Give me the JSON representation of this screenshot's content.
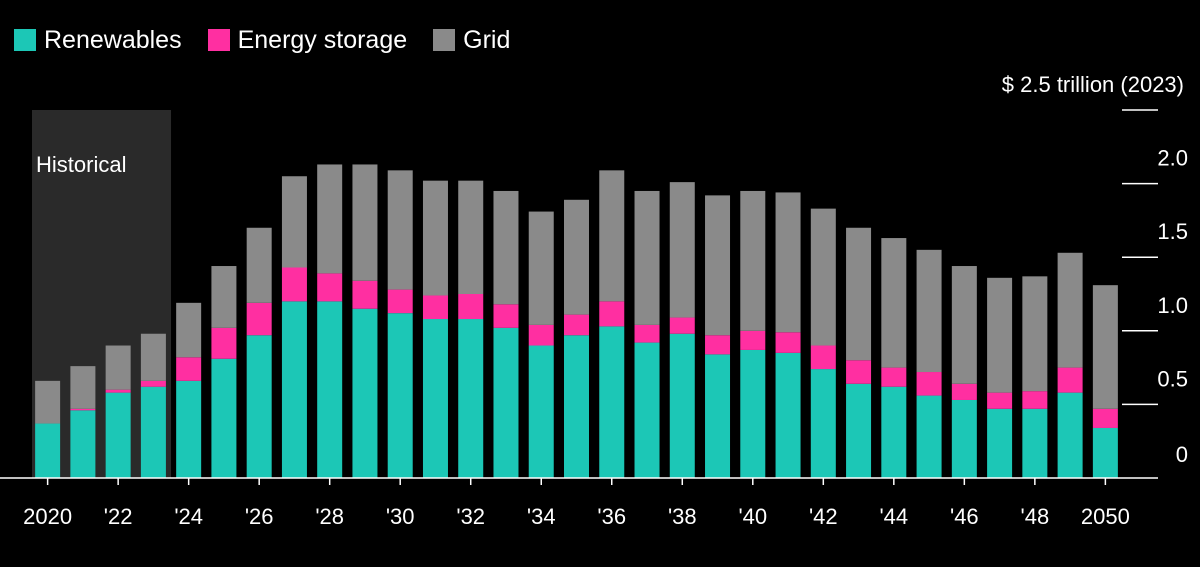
{
  "chart_data": {
    "type": "bar",
    "stacked": true,
    "unit_label": "$ 2.5 trillion (2023)",
    "ylim": [
      0,
      2.5
    ],
    "yticks": [
      "0",
      "0.5",
      "1.0",
      "1.5",
      "2.0"
    ],
    "ytick_values": [
      0,
      0.5,
      1.0,
      1.5,
      2.0
    ],
    "legend_position": "top-left",
    "x": [
      2020,
      2021,
      2022,
      2023,
      2024,
      2025,
      2026,
      2027,
      2028,
      2029,
      2030,
      2031,
      2032,
      2033,
      2034,
      2035,
      2036,
      2037,
      2038,
      2039,
      2040,
      2041,
      2042,
      2043,
      2044,
      2045,
      2046,
      2047,
      2048,
      2049,
      2050
    ],
    "xtick_labels": [
      "2020",
      "",
      "'22",
      "",
      "'24",
      "",
      "'26",
      "",
      "'28",
      "",
      "'30",
      "",
      "'32",
      "",
      "'34",
      "",
      "'36",
      "",
      "'38",
      "",
      "'40",
      "",
      "'42",
      "",
      "'44",
      "",
      "'46",
      "",
      "'48",
      "",
      "2050"
    ],
    "annotation": {
      "text": "Historical",
      "x_start": 2020,
      "x_end": 2023
    },
    "series": [
      {
        "name": "Renewables",
        "color": "#1cc7b6",
        "values": [
          0.37,
          0.46,
          0.58,
          0.62,
          0.66,
          0.81,
          0.97,
          1.2,
          1.2,
          1.15,
          1.12,
          1.08,
          1.08,
          1.02,
          0.9,
          0.97,
          1.03,
          0.92,
          0.98,
          0.84,
          0.87,
          0.85,
          0.74,
          0.64,
          0.62,
          0.56,
          0.53,
          0.47,
          0.47,
          0.58,
          0.34
        ]
      },
      {
        "name": "Energy storage",
        "color": "#ff2fa1",
        "values": [
          0.0,
          0.01,
          0.02,
          0.04,
          0.16,
          0.21,
          0.22,
          0.23,
          0.19,
          0.19,
          0.16,
          0.16,
          0.17,
          0.16,
          0.14,
          0.14,
          0.17,
          0.12,
          0.11,
          0.13,
          0.13,
          0.14,
          0.16,
          0.16,
          0.13,
          0.16,
          0.11,
          0.11,
          0.12,
          0.17,
          0.13
        ]
      },
      {
        "name": "Grid",
        "color": "#8a8a8a",
        "values": [
          0.29,
          0.29,
          0.3,
          0.32,
          0.37,
          0.42,
          0.51,
          0.62,
          0.74,
          0.79,
          0.81,
          0.78,
          0.77,
          0.77,
          0.77,
          0.78,
          0.89,
          0.91,
          0.92,
          0.95,
          0.95,
          0.95,
          0.93,
          0.9,
          0.88,
          0.83,
          0.8,
          0.78,
          0.78,
          0.78,
          0.84
        ]
      }
    ]
  }
}
